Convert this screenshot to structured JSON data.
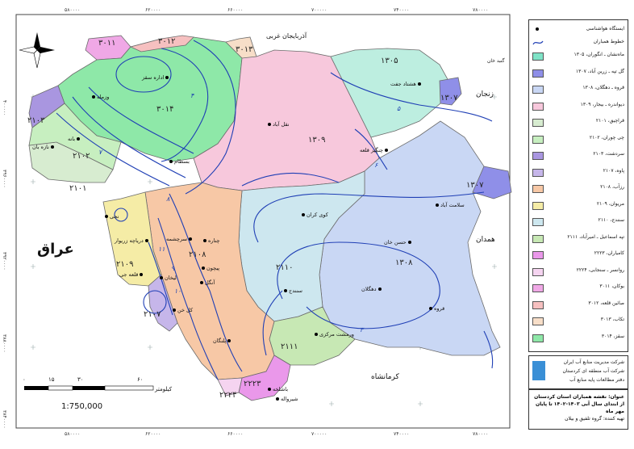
{
  "coords": {
    "top": [
      "۵۸۰۰۰۰",
      "۶۲۰۰۰۰",
      "۶۶۰۰۰۰",
      "۷۰۰۰۰۰",
      "۷۴۰۰۰۰",
      "۷۸۰۰۰۰"
    ],
    "left": [
      "۴۰۰۰۰۰",
      "۳۹۶۰۰۰۰",
      "۳۹۲۰۰۰۰",
      "۳۸۸۰۰۰۰",
      "۳۸۴۰۰۰۰"
    ]
  },
  "neighbors": {
    "west_azerbaijan": "آذربایجان غربی",
    "zanjan": "زنجان",
    "hamedan": "همدان",
    "kermanshah": "کرمانشاه",
    "iraq": "عراق",
    "gonbad": "گنبد خان"
  },
  "zones": [
    {
      "id": "z3011",
      "text": "۳۰۱۱"
    },
    {
      "id": "z3012",
      "text": "۳۰۱۲"
    },
    {
      "id": "z3013",
      "text": "۳۰۱۳"
    },
    {
      "id": "z3014",
      "text": "۳۰۱۴"
    },
    {
      "id": "z1305",
      "text": "۱۳۰۵"
    },
    {
      "id": "z1307a",
      "text": "۱۳۰۷"
    },
    {
      "id": "z1307b",
      "text": "۱۳۰۷"
    },
    {
      "id": "z1309",
      "text": "۱۳۰۹"
    },
    {
      "id": "z2103",
      "text": "۲۱۰۳"
    },
    {
      "id": "z2102",
      "text": "۲۱۰۲"
    },
    {
      "id": "z2101",
      "text": "۲۱۰۱"
    },
    {
      "id": "z2108",
      "text": "۲۱۰۸"
    },
    {
      "id": "z2109",
      "text": "۲۱۰۹"
    },
    {
      "id": "z2107",
      "text": "۲۱۰۷"
    },
    {
      "id": "z2110",
      "text": "۲۱۱۰"
    },
    {
      "id": "z1308",
      "text": "۱۳۰۸"
    },
    {
      "id": "z2111",
      "text": "۲۱۱۱"
    },
    {
      "id": "z2223",
      "text": "۲۲۲۳"
    },
    {
      "id": "z2224",
      "text": "۲۲۲۴"
    }
  ],
  "stations": [
    {
      "id": "s1",
      "name": "اداره سقز"
    },
    {
      "id": "s2",
      "name": "وزمله"
    },
    {
      "id": "s3",
      "name": "بانه"
    },
    {
      "id": "s4",
      "name": "نازه بان"
    },
    {
      "id": "s5",
      "name": "بسطام"
    },
    {
      "id": "s6",
      "name": "هشتاد جفت"
    },
    {
      "id": "s7",
      "name": "نقل آباد"
    },
    {
      "id": "s8",
      "name": "چنگیز قلعه"
    },
    {
      "id": "s9",
      "name": "سلامت آباد"
    },
    {
      "id": "s10",
      "name": "کوی کران"
    },
    {
      "id": "s11",
      "name": "حسن خان"
    },
    {
      "id": "s12",
      "name": "دهگلان"
    },
    {
      "id": "s13",
      "name": "سنندج"
    },
    {
      "id": "s14",
      "name": "قروه"
    },
    {
      "id": "s15",
      "name": "نجی"
    },
    {
      "id": "s16",
      "name": "دریاچه زریوار"
    },
    {
      "id": "s17",
      "name": "سرچشمه"
    },
    {
      "id": "s18",
      "name": "چناره"
    },
    {
      "id": "s19",
      "name": "پیچون"
    },
    {
      "id": "s20",
      "name": "قلعه جی"
    },
    {
      "id": "s21",
      "name": "لیخان"
    },
    {
      "id": "s22",
      "name": "آنگل"
    },
    {
      "id": "s23",
      "name": "کل خن"
    },
    {
      "id": "s24",
      "name": "پلنگان"
    },
    {
      "id": "s25",
      "name": "ورمشت مرکزی"
    },
    {
      "id": "s26",
      "name": "باشلخه"
    },
    {
      "id": "s27",
      "name": "شیرواله"
    }
  ],
  "contour_values": [
    "۴",
    "۵",
    "۶",
    "۷",
    "۸",
    "۹",
    "۱۰",
    "۱۱",
    "۳"
  ],
  "scale": {
    "ticks": [
      "۶۰",
      "۳۰",
      "۱۵",
      "۰"
    ],
    "unit": "کیلومتر",
    "ratio": "1:750,000"
  },
  "legend": {
    "station": "ایستگاه هواشناسی",
    "contour": "خطوط همباران",
    "items": [
      {
        "label": "ماه‌نشان ـ انگوران، ۱۳۰۵",
        "color": "#7fe3c7"
      },
      {
        "label": "گل تپه ـ زرین آباد، ۱۳۰۷",
        "color": "#8f8fe8"
      },
      {
        "label": "قروه ـ دهگلان، ۱۳۰۸",
        "color": "#c9d7f4"
      },
      {
        "label": "دیواندره ـ بیجار، ۱۳۰۹",
        "color": "#f7c8dc"
      },
      {
        "label": "قراچیق، ۲۱۰۱",
        "color": "#d7ecd0"
      },
      {
        "label": "چی چوران، ۲۱۰۲",
        "color": "#c7efc0"
      },
      {
        "label": "سردشت، ۲۱۰۳",
        "color": "#a996e0"
      },
      {
        "label": "پاوه، ۲۱۰۷",
        "color": "#c6b6ea"
      },
      {
        "label": "رزآب، ۲۱۰۸",
        "color": "#f7c8a6"
      },
      {
        "label": "مریوان، ۲۱۰۹",
        "color": "#f5eca6"
      },
      {
        "label": "سنندج، ۲۱۱۰",
        "color": "#cde7ef"
      },
      {
        "label": "تپه اسماعیل ـ امیرآباد، ۲۱۱۱",
        "color": "#c7e8b4"
      },
      {
        "label": "کامیاران، ۲۲۲۳",
        "color": "#ea98ea"
      },
      {
        "label": "روانسر ـ سنجابی، ۲۲۲۴",
        "color": "#f5d4f0"
      },
      {
        "label": "بوکان، ۳۰۱۱",
        "color": "#f0a8e6"
      },
      {
        "label": "صائین قلعه، ۳۰۱۲",
        "color": "#f6c0c0"
      },
      {
        "label": "تکاب، ۳۰۱۳",
        "color": "#f7dec8"
      },
      {
        "label": "سقز، ۳۰۱۴",
        "color": "#8ee8a8"
      }
    ]
  },
  "logo": {
    "line1": "شرکت مدیریت منابع آب ایران",
    "line2": "شرکت آب منطقه ای کردستان",
    "line3": "دفتر مطالعات پایه منابع آب"
  },
  "title": {
    "label": "عنوان:",
    "text": "نقشه همباران استان کردستان از ابتدای سال آبی ۱۴۰۳-۱۴۰۲ تا پایان مهر ماه",
    "prepared": "تهیه کننده: گروه تلفیق و بیلان"
  },
  "colors": {
    "contour": "#1f3fb5",
    "border": "#5a5a5a"
  }
}
